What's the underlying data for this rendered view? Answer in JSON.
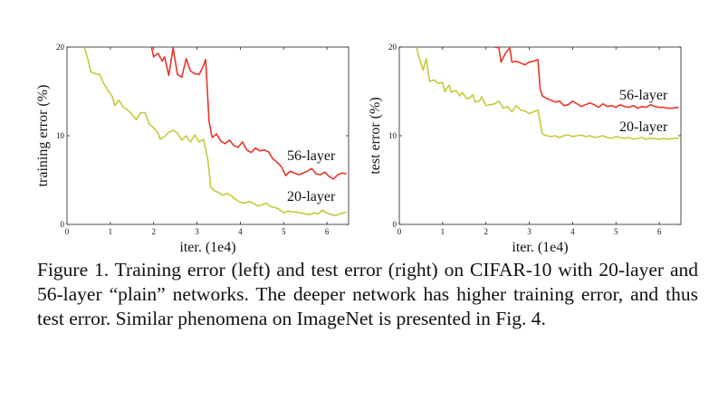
{
  "chart_data": [
    {
      "type": "line",
      "ylabel": "training error (%)",
      "xlabel": "iter. (1e4)",
      "xlim": [
        0,
        6.5
      ],
      "ylim": [
        0,
        20
      ],
      "xticks": [
        "0",
        "1",
        "2",
        "3",
        "4",
        "5",
        "6"
      ],
      "yticks": [
        "0",
        "10",
        "20"
      ],
      "grid": false,
      "legend": "inline labels next to lines",
      "series": [
        {
          "name": "56-layer",
          "color": "#e8352a",
          "points": [
            [
              1.95,
              20
            ],
            [
              2.0,
              18.9
            ],
            [
              2.1,
              19.3
            ],
            [
              2.2,
              18.4
            ],
            [
              2.25,
              18.9
            ],
            [
              2.35,
              16.8
            ],
            [
              2.45,
              19.9
            ],
            [
              2.55,
              16.9
            ],
            [
              2.65,
              16.6
            ],
            [
              2.75,
              18.7
            ],
            [
              2.85,
              17.3
            ],
            [
              2.95,
              17.0
            ],
            [
              3.05,
              16.9
            ],
            [
              3.15,
              17.9
            ],
            [
              3.2,
              18.6
            ],
            [
              3.28,
              11.6
            ],
            [
              3.35,
              9.8
            ],
            [
              3.45,
              10.2
            ],
            [
              3.55,
              9.4
            ],
            [
              3.65,
              9.1
            ],
            [
              3.75,
              9.5
            ],
            [
              3.85,
              8.9
            ],
            [
              3.95,
              8.7
            ],
            [
              4.05,
              9.3
            ],
            [
              4.15,
              8.4
            ],
            [
              4.25,
              8.1
            ],
            [
              4.35,
              8.6
            ],
            [
              4.45,
              8.3
            ],
            [
              4.55,
              8.4
            ],
            [
              4.65,
              8.2
            ],
            [
              4.75,
              7.4
            ],
            [
              4.85,
              7.0
            ],
            [
              4.95,
              6.5
            ],
            [
              5.05,
              5.5
            ],
            [
              5.15,
              6.0
            ],
            [
              5.25,
              5.8
            ],
            [
              5.35,
              5.6
            ],
            [
              5.45,
              5.8
            ],
            [
              5.55,
              6.0
            ],
            [
              5.65,
              6.3
            ],
            [
              5.75,
              5.7
            ],
            [
              5.85,
              5.6
            ],
            [
              5.95,
              5.9
            ],
            [
              6.05,
              5.4
            ],
            [
              6.15,
              5.1
            ],
            [
              6.25,
              5.6
            ],
            [
              6.35,
              5.8
            ],
            [
              6.45,
              5.7
            ]
          ]
        },
        {
          "name": "20-layer",
          "color": "#c8c83a",
          "points": [
            [
              0.4,
              20
            ],
            [
              0.5,
              18.3
            ],
            [
              0.55,
              17.2
            ],
            [
              0.65,
              17.0
            ],
            [
              0.75,
              16.9
            ],
            [
              0.85,
              15.9
            ],
            [
              0.95,
              15.1
            ],
            [
              1.05,
              14.4
            ],
            [
              1.1,
              13.4
            ],
            [
              1.2,
              14.0
            ],
            [
              1.3,
              13.2
            ],
            [
              1.4,
              12.9
            ],
            [
              1.5,
              12.4
            ],
            [
              1.6,
              11.8
            ],
            [
              1.7,
              12.6
            ],
            [
              1.8,
              12.6
            ],
            [
              1.9,
              11.3
            ],
            [
              2.0,
              10.9
            ],
            [
              2.1,
              10.3
            ],
            [
              2.15,
              9.6
            ],
            [
              2.25,
              9.9
            ],
            [
              2.35,
              10.4
            ],
            [
              2.45,
              10.6
            ],
            [
              2.55,
              10.3
            ],
            [
              2.65,
              9.5
            ],
            [
              2.75,
              10.0
            ],
            [
              2.85,
              9.3
            ],
            [
              2.95,
              10.1
            ],
            [
              3.05,
              9.3
            ],
            [
              3.15,
              9.6
            ],
            [
              3.2,
              8.5
            ],
            [
              3.25,
              7.3
            ],
            [
              3.32,
              4.2
            ],
            [
              3.4,
              3.8
            ],
            [
              3.5,
              3.6
            ],
            [
              3.6,
              3.3
            ],
            [
              3.7,
              3.5
            ],
            [
              3.8,
              3.2
            ],
            [
              3.9,
              2.8
            ],
            [
              4.0,
              2.5
            ],
            [
              4.1,
              2.4
            ],
            [
              4.2,
              2.6
            ],
            [
              4.3,
              2.4
            ],
            [
              4.4,
              2.1
            ],
            [
              4.5,
              2.2
            ],
            [
              4.6,
              2.4
            ],
            [
              4.7,
              2.0
            ],
            [
              4.8,
              1.9
            ],
            [
              4.9,
              1.7
            ],
            [
              5.0,
              1.3
            ],
            [
              5.1,
              1.5
            ],
            [
              5.2,
              1.4
            ],
            [
              5.3,
              1.4
            ],
            [
              5.4,
              1.3
            ],
            [
              5.5,
              1.2
            ],
            [
              5.6,
              1.1
            ],
            [
              5.7,
              1.3
            ],
            [
              5.8,
              1.2
            ],
            [
              5.9,
              1.6
            ],
            [
              6.0,
              1.3
            ],
            [
              6.1,
              1.1
            ],
            [
              6.2,
              1.0
            ],
            [
              6.3,
              1.2
            ],
            [
              6.45,
              1.4
            ]
          ]
        }
      ]
    },
    {
      "type": "line",
      "ylabel": "test error (%)",
      "xlabel": "iter. (1e4)",
      "xlim": [
        0,
        6.5
      ],
      "ylim": [
        0,
        20
      ],
      "xticks": [
        "0",
        "1",
        "2",
        "3",
        "4",
        "5",
        "6"
      ],
      "yticks": [
        "0",
        "10",
        "20"
      ],
      "grid": false,
      "legend": "inline labels next to lines",
      "series": [
        {
          "name": "56-layer",
          "color": "#e8352a",
          "points": [
            [
              2.2,
              20
            ],
            [
              2.3,
              19.9
            ],
            [
              2.35,
              18.3
            ],
            [
              2.45,
              19.3
            ],
            [
              2.55,
              19.9
            ],
            [
              2.6,
              18.3
            ],
            [
              2.7,
              18.4
            ],
            [
              2.8,
              18.2
            ],
            [
              2.9,
              18.0
            ],
            [
              3.0,
              18.3
            ],
            [
              3.1,
              18.4
            ],
            [
              3.2,
              18.6
            ],
            [
              3.25,
              15.3
            ],
            [
              3.3,
              14.5
            ],
            [
              3.4,
              14.2
            ],
            [
              3.5,
              14.0
            ],
            [
              3.6,
              13.8
            ],
            [
              3.7,
              13.9
            ],
            [
              3.8,
              13.4
            ],
            [
              3.9,
              13.5
            ],
            [
              4.0,
              13.9
            ],
            [
              4.1,
              13.6
            ],
            [
              4.2,
              13.3
            ],
            [
              4.3,
              13.5
            ],
            [
              4.4,
              13.7
            ],
            [
              4.5,
              13.5
            ],
            [
              4.6,
              13.2
            ],
            [
              4.7,
              13.6
            ],
            [
              4.8,
              13.3
            ],
            [
              4.9,
              13.4
            ],
            [
              5.0,
              13.2
            ],
            [
              5.1,
              13.5
            ],
            [
              5.2,
              13.3
            ],
            [
              5.3,
              13.2
            ],
            [
              5.4,
              13.4
            ],
            [
              5.5,
              13.1
            ],
            [
              5.6,
              13.3
            ],
            [
              5.7,
              13.2
            ],
            [
              5.8,
              13.5
            ],
            [
              5.9,
              13.3
            ],
            [
              6.0,
              13.2
            ],
            [
              6.1,
              13.2
            ],
            [
              6.2,
              13.1
            ],
            [
              6.3,
              13.1
            ],
            [
              6.45,
              13.2
            ]
          ]
        },
        {
          "name": "20-layer",
          "color": "#c8c83a",
          "points": [
            [
              0.4,
              20
            ],
            [
              0.45,
              18.9
            ],
            [
              0.55,
              17.4
            ],
            [
              0.62,
              18.7
            ],
            [
              0.7,
              16.1
            ],
            [
              0.8,
              16.3
            ],
            [
              0.9,
              15.9
            ],
            [
              1.0,
              16.0
            ],
            [
              1.05,
              15.0
            ],
            [
              1.15,
              15.7
            ],
            [
              1.2,
              14.9
            ],
            [
              1.3,
              15.1
            ],
            [
              1.4,
              14.5
            ],
            [
              1.45,
              14.9
            ],
            [
              1.55,
              14.2
            ],
            [
              1.6,
              14.2
            ],
            [
              1.7,
              14.6
            ],
            [
              1.75,
              13.8
            ],
            [
              1.85,
              13.9
            ],
            [
              1.9,
              14.4
            ],
            [
              2.0,
              13.4
            ],
            [
              2.1,
              13.5
            ],
            [
              2.2,
              13.6
            ],
            [
              2.3,
              13.9
            ],
            [
              2.4,
              13.1
            ],
            [
              2.5,
              13.3
            ],
            [
              2.6,
              12.7
            ],
            [
              2.7,
              13.4
            ],
            [
              2.8,
              12.9
            ],
            [
              2.9,
              12.8
            ],
            [
              3.0,
              12.5
            ],
            [
              3.1,
              12.7
            ],
            [
              3.2,
              12.9
            ],
            [
              3.25,
              11.5
            ],
            [
              3.3,
              10.2
            ],
            [
              3.4,
              10.0
            ],
            [
              3.5,
              9.9
            ],
            [
              3.6,
              10.0
            ],
            [
              3.7,
              9.8
            ],
            [
              3.8,
              10.0
            ],
            [
              3.9,
              10.1
            ],
            [
              4.0,
              9.9
            ],
            [
              4.1,
              10.0
            ],
            [
              4.2,
              10.1
            ],
            [
              4.3,
              9.9
            ],
            [
              4.4,
              10.0
            ],
            [
              4.5,
              9.8
            ],
            [
              4.6,
              9.9
            ],
            [
              4.7,
              10.0
            ],
            [
              4.8,
              9.8
            ],
            [
              4.9,
              9.7
            ],
            [
              5.0,
              9.9
            ],
            [
              5.1,
              9.8
            ],
            [
              5.2,
              9.7
            ],
            [
              5.3,
              9.8
            ],
            [
              5.4,
              9.6
            ],
            [
              5.5,
              9.7
            ],
            [
              5.6,
              9.8
            ],
            [
              5.7,
              9.6
            ],
            [
              5.8,
              9.7
            ],
            [
              5.9,
              9.7
            ],
            [
              6.0,
              9.6
            ],
            [
              6.1,
              9.7
            ],
            [
              6.2,
              9.6
            ],
            [
              6.3,
              9.7
            ],
            [
              6.45,
              9.7
            ]
          ]
        }
      ]
    }
  ],
  "caption": "Figure 1. Training error (left) and test error (right) on CIFAR-10 with 20-layer and 56-layer “plain” networks. The deeper network has higher training error, and thus test error. Similar phenomena on ImageNet is presented in Fig. 4."
}
